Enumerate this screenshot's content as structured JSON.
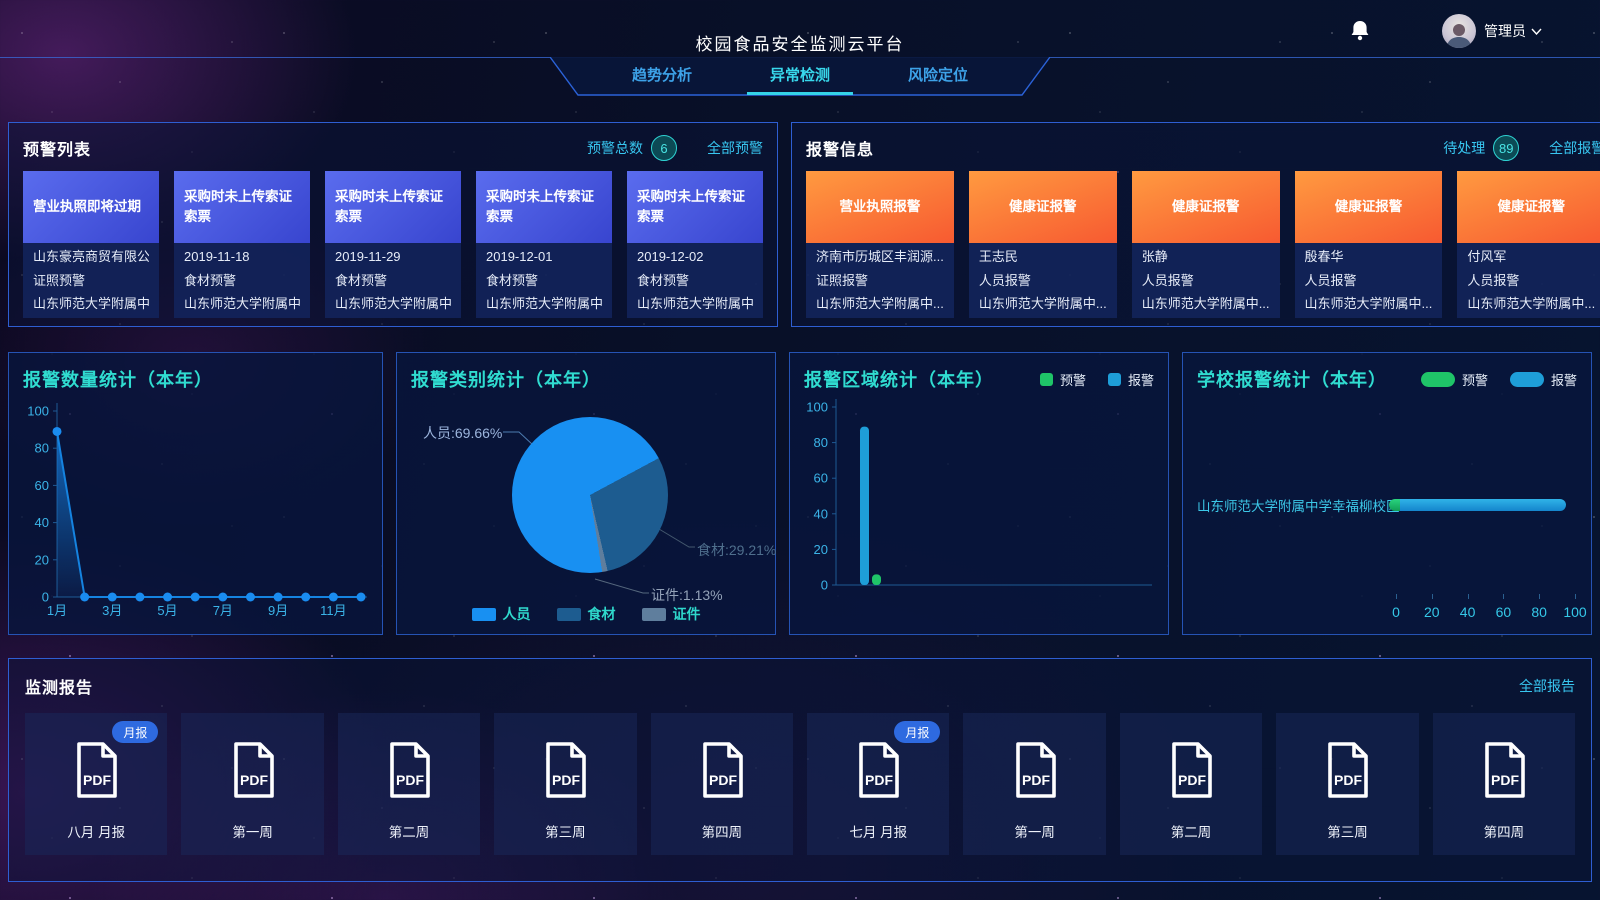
{
  "header": {
    "title": "校园食品安全监测云平台",
    "tabs": [
      {
        "label": "趋势分析",
        "active": false
      },
      {
        "label": "异常检测",
        "active": true
      },
      {
        "label": "风险定位",
        "active": false
      }
    ],
    "user": {
      "name": "管理员"
    }
  },
  "warning_panel": {
    "title": "预警列表",
    "count_label": "预警总数",
    "count": "6",
    "link": "全部预警",
    "cards": [
      {
        "title": "营业执照即将过期",
        "line1": "山东豪亮商贸有限公司",
        "line2": "证照预警",
        "line3": "山东师范大学附属中..."
      },
      {
        "title": "采购时未上传索证索票",
        "line1": "2019-11-18",
        "line2": "食材预警",
        "line3": "山东师范大学附属中..."
      },
      {
        "title": "采购时未上传索证索票",
        "line1": "2019-11-29",
        "line2": "食材预警",
        "line3": "山东师范大学附属中..."
      },
      {
        "title": "采购时未上传索证索票",
        "line1": "2019-12-01",
        "line2": "食材预警",
        "line3": "山东师范大学附属中..."
      },
      {
        "title": "采购时未上传索证索票",
        "line1": "2019-12-02",
        "line2": "食材预警",
        "line3": "山东师范大学附属中..."
      }
    ]
  },
  "alarm_panel": {
    "title": "报警信息",
    "count_label": "待处理",
    "count": "89",
    "link": "全部报警",
    "cards": [
      {
        "title": "营业执照报警",
        "line1": "济南市历城区丰润源...",
        "line2": "证照报警",
        "line3": "山东师范大学附属中..."
      },
      {
        "title": "健康证报警",
        "line1": "王志民",
        "line2": "人员报警",
        "line3": "山东师范大学附属中..."
      },
      {
        "title": "健康证报警",
        "line1": "张静",
        "line2": "人员报警",
        "line3": "山东师范大学附属中..."
      },
      {
        "title": "健康证报警",
        "line1": "殷春华",
        "line2": "人员报警",
        "line3": "山东师范大学附属中..."
      },
      {
        "title": "健康证报警",
        "line1": "付风军",
        "line2": "人员报警",
        "line3": "山东师范大学附属中..."
      }
    ]
  },
  "chart_data": [
    {
      "type": "line",
      "title": "报警数量统计（本年）",
      "x": [
        "1月",
        "2月",
        "3月",
        "4月",
        "5月",
        "6月",
        "7月",
        "8月",
        "9月",
        "10月",
        "11月",
        "12月"
      ],
      "values": [
        89,
        0,
        0,
        0,
        0,
        0,
        0,
        0,
        0,
        0,
        0,
        0
      ],
      "ylim": [
        0,
        100
      ],
      "yticks": [
        0,
        20,
        40,
        60,
        80,
        100
      ],
      "xtick_step": 2,
      "grid": false
    },
    {
      "type": "pie",
      "title": "报警类别统计（本年）",
      "slices": [
        {
          "name": "人员",
          "value": 69.66,
          "label": "人员:69.66%"
        },
        {
          "name": "食材",
          "value": 29.21,
          "label": "食材:29.21%"
        },
        {
          "name": "证件",
          "value": 1.13,
          "label": "证件:1.13%"
        }
      ],
      "legend": [
        "人员",
        "食材",
        "证件"
      ],
      "legend_position": "bottom"
    },
    {
      "type": "bar",
      "title": "报警区域统计（本年）",
      "legend": [
        "预警",
        "报警"
      ],
      "categories": [
        ""
      ],
      "series": [
        {
          "name": "报警",
          "values": [
            89
          ]
        },
        {
          "name": "预警",
          "values": [
            6
          ]
        }
      ],
      "ylim": [
        0,
        100
      ],
      "yticks": [
        0,
        20,
        40,
        60,
        80,
        100
      ],
      "grid": false
    },
    {
      "type": "horizontal-stacked-bar",
      "title": "学校报警统计（本年）",
      "legend": [
        "预警",
        "报警"
      ],
      "categories": [
        "山东师范大学附属中学幸福柳校区"
      ],
      "series": [
        {
          "name": "预警",
          "values": [
            6
          ]
        },
        {
          "name": "报警",
          "values": [
            89
          ]
        }
      ],
      "xlim": [
        0,
        100
      ],
      "xticks": [
        0,
        20,
        40,
        60,
        80,
        100
      ]
    }
  ],
  "reports_panel": {
    "title": "监测报告",
    "link": "全部报告",
    "cards": [
      {
        "label": "八月 月报",
        "badge": "月报"
      },
      {
        "label": "第一周",
        "badge": ""
      },
      {
        "label": "第二周",
        "badge": ""
      },
      {
        "label": "第三周",
        "badge": ""
      },
      {
        "label": "第四周",
        "badge": ""
      },
      {
        "label": "七月 月报",
        "badge": "月报"
      },
      {
        "label": "第一周",
        "badge": ""
      },
      {
        "label": "第二周",
        "badge": ""
      },
      {
        "label": "第三周",
        "badge": ""
      },
      {
        "label": "第四周",
        "badge": ""
      }
    ]
  },
  "colors": {
    "accent_cyan": "#35d8e8",
    "chart_title": "#30dcd0",
    "link": "#38c6f0",
    "axis_text": "#3bb4e8",
    "axis_line": "#1e5a94",
    "line_series": "#1583e0",
    "point_fill": "#1a8cf0",
    "green_series": "#1fc468",
    "blue_series": "#1e9ed8",
    "pie": {
      "人员": "#1890f2",
      "食材": "#1d5c90",
      "证件": "#5f7e9d"
    },
    "warning_card_gradient": [
      "#5a6cee",
      "#3845cf"
    ],
    "alarm_card_gradient": [
      "#ff9a40",
      "#f75a31"
    ]
  }
}
